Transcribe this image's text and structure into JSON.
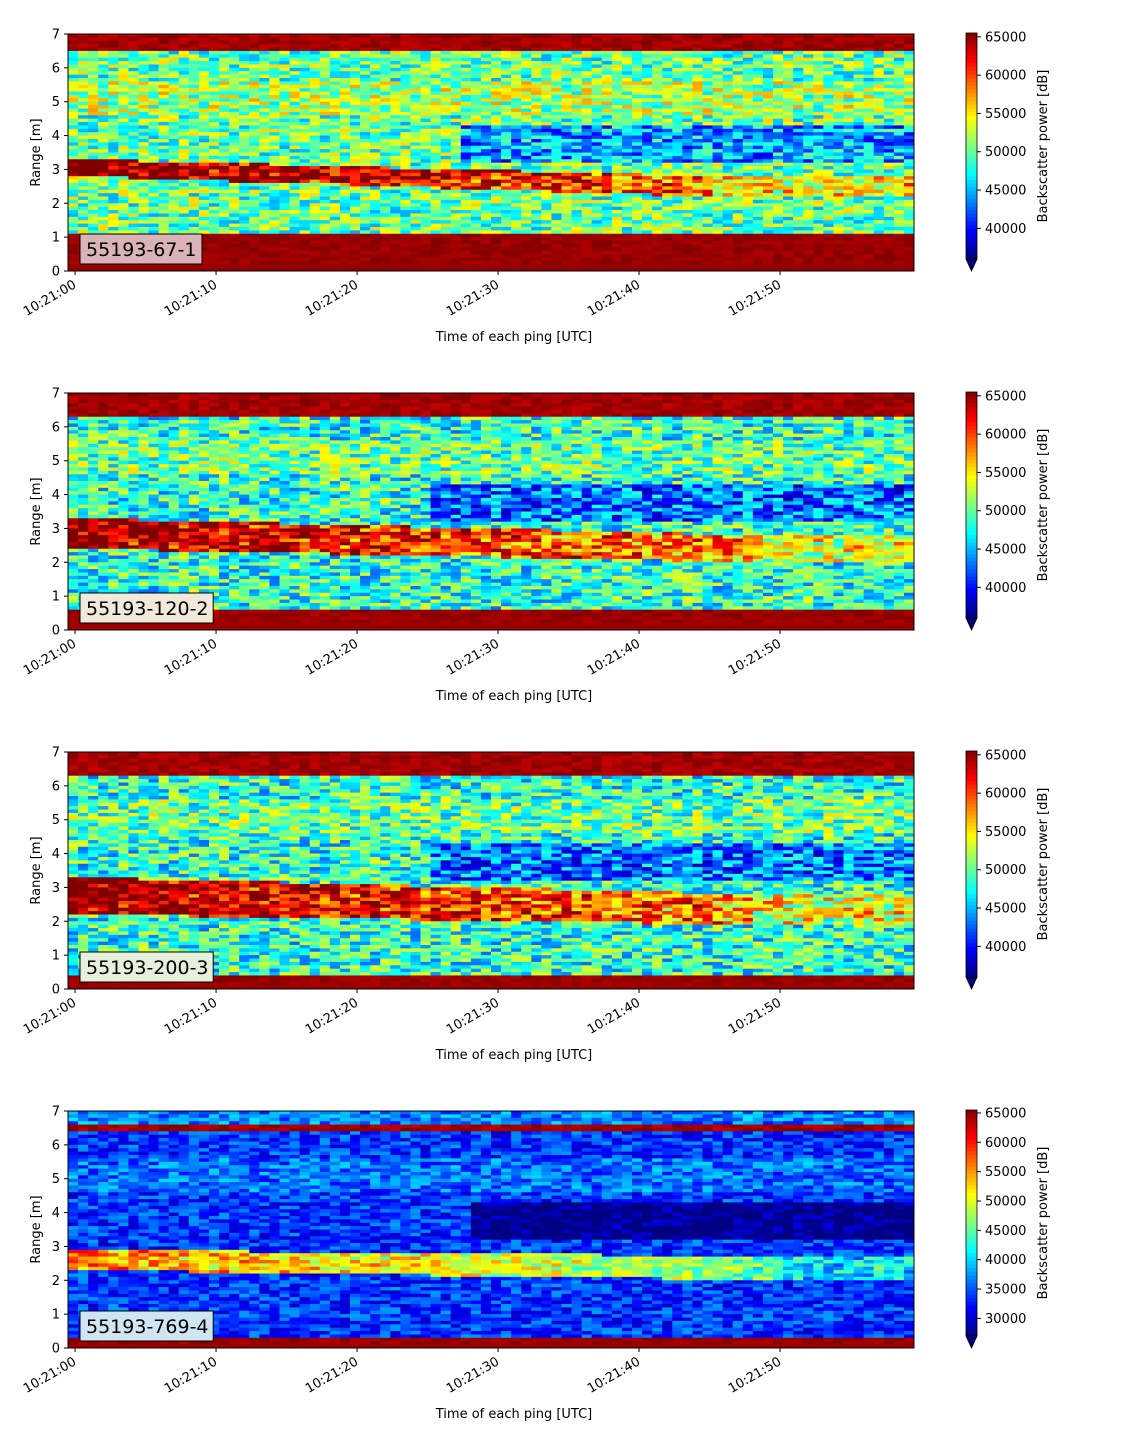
{
  "chart_data": [
    {
      "type": "heatmap",
      "id": "panel-1",
      "label": "55193-67-1",
      "label_bg": "#d9b3b5",
      "xlabel": "Time of each ping [UTC]",
      "ylabel": "Range [m]",
      "x_ticks": [
        "10:21:00",
        "10:21:10",
        "10:21:20",
        "10:21:30",
        "10:21:40",
        "10:21:50"
      ],
      "x_range_seconds": [
        -0.5,
        59.5
      ],
      "ylim": [
        0,
        7
      ],
      "y_ticks": [
        "0",
        "1",
        "2",
        "3",
        "4",
        "5",
        "6",
        "7"
      ],
      "colorbar": {
        "label": "Backscatter power [dB]",
        "vmin": 36000,
        "vmax": 65500,
        "ticks": [
          40000,
          45000,
          50000,
          55000,
          60000,
          65000
        ],
        "tick_labels": [
          "40000",
          "45000",
          "50000",
          "55000",
          "60000",
          "65000"
        ],
        "colormap": "jet",
        "extend": "min"
      },
      "structure": {
        "near_field_band_m": [
          0.25,
          1.15
        ],
        "bottom_strip_m": [
          0,
          0.25
        ],
        "surface_band_m": [
          6.5,
          7.0
        ],
        "scattering_layer": {
          "start_m": [
            2.8,
            3.3
          ],
          "end_m": [
            2.2,
            2.8
          ],
          "ends_at_s": 45
        },
        "upper_layer_start_s": 27,
        "overall_level": "high"
      }
    },
    {
      "type": "heatmap",
      "id": "panel-2",
      "label": "55193-120-2",
      "label_bg": "#f1eadb",
      "xlabel": "Time of each ping [UTC]",
      "ylabel": "Range [m]",
      "x_ticks": [
        "10:21:00",
        "10:21:10",
        "10:21:20",
        "10:21:30",
        "10:21:40",
        "10:21:50"
      ],
      "x_range_seconds": [
        -0.5,
        59.5
      ],
      "ylim": [
        0,
        7
      ],
      "y_ticks": [
        "0",
        "1",
        "2",
        "3",
        "4",
        "5",
        "6",
        "7"
      ],
      "colorbar": {
        "label": "Backscatter power [dB]",
        "vmin": 36000,
        "vmax": 65500,
        "ticks": [
          40000,
          45000,
          50000,
          55000,
          60000,
          65000
        ],
        "tick_labels": [
          "40000",
          "45000",
          "50000",
          "55000",
          "60000",
          "65000"
        ],
        "colormap": "jet",
        "extend": "min"
      },
      "structure": {
        "near_field_band_m": [
          0.25,
          0.6
        ],
        "bottom_strip_m": [
          0,
          0.25
        ],
        "surface_band_m": [
          6.35,
          7.0
        ],
        "scattering_layer": {
          "start_m": [
            2.4,
            3.3
          ],
          "end_m": [
            2.0,
            2.8
          ],
          "ends_at_s": 48
        },
        "upper_layer_start_s": 25,
        "overall_level": "medium"
      }
    },
    {
      "type": "heatmap",
      "id": "panel-3",
      "label": "55193-200-3",
      "label_bg": "#e6f0dc",
      "xlabel": "Time of each ping [UTC]",
      "ylabel": "Range [m]",
      "x_ticks": [
        "10:21:00",
        "10:21:10",
        "10:21:20",
        "10:21:30",
        "10:21:40",
        "10:21:50"
      ],
      "x_range_seconds": [
        -0.5,
        59.5
      ],
      "ylim": [
        0,
        7
      ],
      "y_ticks": [
        "0",
        "1",
        "2",
        "3",
        "4",
        "5",
        "6",
        "7"
      ],
      "colorbar": {
        "label": "Backscatter power [dB]",
        "vmin": 36000,
        "vmax": 65500,
        "ticks": [
          40000,
          45000,
          50000,
          55000,
          60000,
          65000
        ],
        "tick_labels": [
          "40000",
          "45000",
          "50000",
          "55000",
          "60000",
          "65000"
        ],
        "colormap": "jet",
        "extend": "min"
      },
      "structure": {
        "near_field_band_m": [
          0.12,
          0.4
        ],
        "bottom_strip_m": [
          0,
          0.12
        ],
        "surface_band_m": [
          6.35,
          6.7
        ],
        "scattering_layer": {
          "start_m": [
            2.2,
            3.3
          ],
          "end_m": [
            1.9,
            2.8
          ],
          "ends_at_s": 48
        },
        "upper_layer_start_s": 25,
        "overall_level": "medium"
      }
    },
    {
      "type": "heatmap",
      "id": "panel-4",
      "label": "55193-769-4",
      "label_bg": "#cfe6f2",
      "xlabel": "Time of each ping [UTC]",
      "ylabel": "Range [m]",
      "x_ticks": [
        "10:21:00",
        "10:21:10",
        "10:21:20",
        "10:21:30",
        "10:21:40",
        "10:21:50"
      ],
      "x_range_seconds": [
        -0.5,
        59.5
      ],
      "ylim": [
        0,
        7
      ],
      "y_ticks": [
        "0",
        "1",
        "2",
        "3",
        "4",
        "5",
        "6",
        "7"
      ],
      "colorbar": {
        "label": "Backscatter power [dB]",
        "vmin": 27000,
        "vmax": 65500,
        "ticks": [
          30000,
          35000,
          40000,
          45000,
          50000,
          55000,
          60000,
          65000
        ],
        "tick_labels": [
          "30000",
          "35000",
          "40000",
          "45000",
          "50000",
          "55000",
          "60000",
          "65000"
        ],
        "colormap": "jet",
        "extend": "min"
      },
      "structure": {
        "near_field_band_m": [
          0.1,
          0.3
        ],
        "bottom_strip_m": [
          0,
          0.1
        ],
        "surface_band_m": [
          6.4,
          6.6
        ],
        "scattering_layer": {
          "start_m": [
            2.3,
            2.9
          ],
          "end_m": [
            2.0,
            2.7
          ],
          "ends_at_s": 50
        },
        "upper_layer_start_s": 28,
        "overall_level": "low"
      }
    }
  ]
}
